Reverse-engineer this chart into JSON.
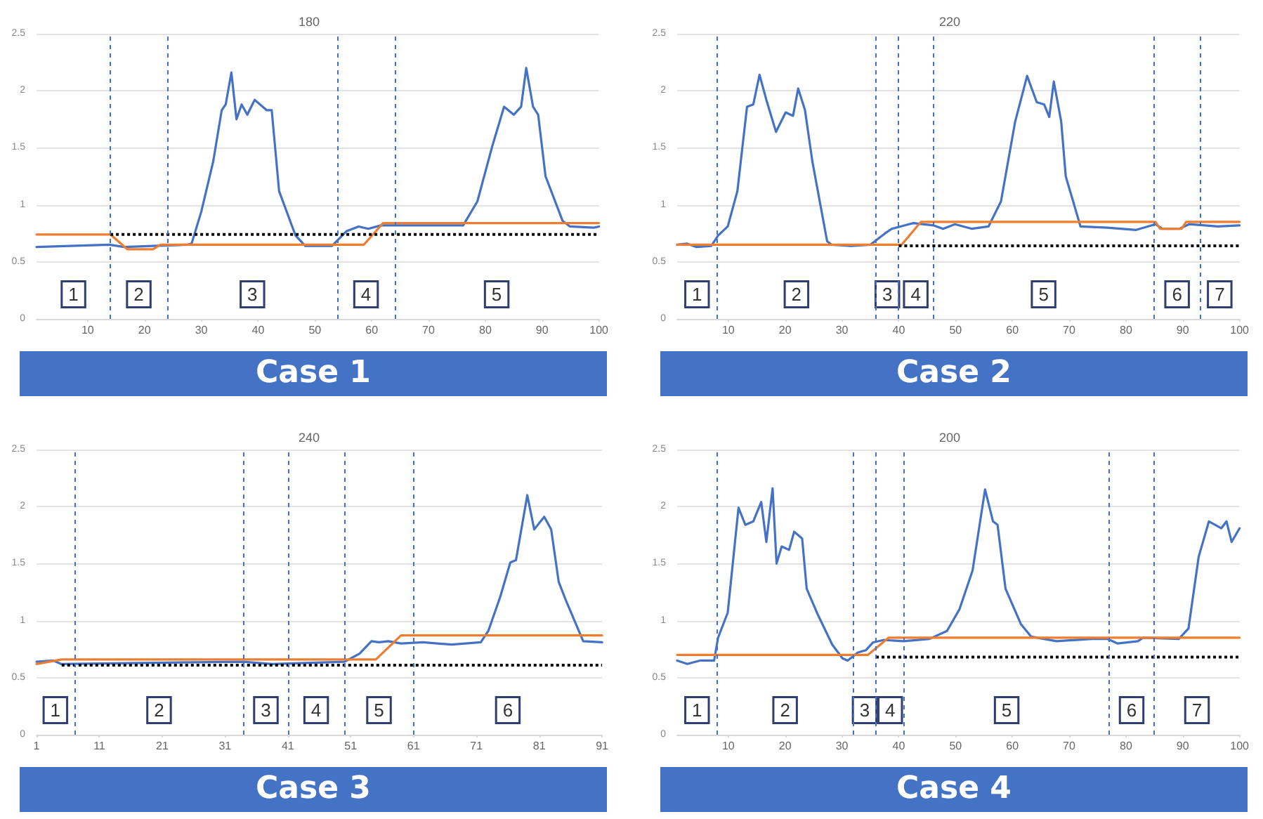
{
  "chart_data": [
    {
      "type": "line",
      "title": "180",
      "subtitle": "Case 1",
      "xlim": [
        1,
        100
      ],
      "xticks": [
        10,
        20,
        30,
        40,
        50,
        60,
        70,
        80,
        90,
        100
      ],
      "ylim": [
        0,
        2.5
      ],
      "yticks": [
        0,
        0.5,
        1,
        1.5,
        2,
        2.5
      ],
      "grid": "y",
      "marker": "none",
      "series": [
        {
          "color": "#4472c4",
          "x": [
            1,
            13.8,
            16.4,
            21.5,
            27.5,
            28.3,
            30,
            32.1,
            33.6,
            34.3,
            35.3,
            36.2,
            37.1,
            38.1,
            39.4,
            41.5,
            42.4,
            43.7,
            46.6,
            48.3,
            53,
            55.6,
            57.7,
            59.4,
            61.6,
            64.1,
            76.1,
            78.6,
            81.2,
            83.3,
            85,
            86.3,
            87.2,
            88.4,
            89.3,
            90.6,
            93.6,
            94.9,
            99.1,
            100
          ],
          "values": [
            0.63,
            0.65,
            0.63,
            0.64,
            0.65,
            0.66,
            0.94,
            1.38,
            1.83,
            1.88,
            2.16,
            1.75,
            1.88,
            1.79,
            1.92,
            1.83,
            1.83,
            1.12,
            0.73,
            0.64,
            0.64,
            0.77,
            0.81,
            0.79,
            0.82,
            0.82,
            0.82,
            1.03,
            1.51,
            1.86,
            1.79,
            1.86,
            2.2,
            1.86,
            1.79,
            1.25,
            0.86,
            0.81,
            0.8,
            0.81
          ]
        },
        {
          "color": "#ed7d31",
          "x": [
            1,
            14,
            17,
            21.5,
            22.8,
            58.6,
            62,
            100
          ],
          "values": [
            0.74,
            0.74,
            0.61,
            0.61,
            0.65,
            0.65,
            0.84,
            0.84
          ]
        },
        {
          "color": "#000000",
          "line_style": "dotted",
          "x": [
            14,
            100
          ],
          "values": [
            0.74,
            0.74
          ]
        }
      ],
      "ref_lines": [
        {
          "axis": "x",
          "value": 14,
          "color": "#4472c4",
          "line_style": "dashed"
        },
        {
          "axis": "x",
          "value": 24,
          "color": "#4472c4",
          "line_style": "dashed"
        },
        {
          "axis": "x",
          "value": 54,
          "color": "#4472c4",
          "line_style": "dashed"
        },
        {
          "axis": "x",
          "value": 64,
          "color": "#4472c4",
          "line_style": "dashed"
        }
      ],
      "annotations": [
        "1",
        "2",
        "3",
        "4",
        "5"
      ]
    },
    {
      "type": "line",
      "title": "220",
      "subtitle": "Case 2",
      "xlim": [
        1,
        100
      ],
      "xticks": [
        10,
        20,
        30,
        40,
        50,
        60,
        70,
        80,
        90,
        100
      ],
      "ylim": [
        0,
        2.5
      ],
      "yticks": [
        0,
        0.5,
        1,
        1.5,
        2,
        2.5
      ],
      "grid": "y",
      "marker": "none",
      "series": [
        {
          "color": "#4472c4",
          "x": [
            1,
            2.7,
            4.4,
            7,
            8.2,
            9.9,
            11.6,
            13.3,
            14.4,
            15.5,
            16.7,
            18.4,
            20.1,
            21.4,
            22.3,
            23.5,
            24.8,
            27.4,
            28.2,
            31.6,
            35,
            37.6,
            38.8,
            41.8,
            42.6,
            46.1,
            47.8,
            49.9,
            52.9,
            55.8,
            58,
            60.5,
            62.6,
            64.3,
            65.6,
            66.5,
            67.3,
            68.6,
            69.4,
            72,
            76.7,
            81.8,
            85.2,
            86.4,
            89.4,
            91.1,
            96.2,
            100
          ],
          "values": [
            0.65,
            0.66,
            0.63,
            0.64,
            0.73,
            0.81,
            1.12,
            1.86,
            1.88,
            2.14,
            1.92,
            1.64,
            1.81,
            1.78,
            2.02,
            1.83,
            1.38,
            0.68,
            0.65,
            0.64,
            0.65,
            0.75,
            0.79,
            0.83,
            0.84,
            0.82,
            0.79,
            0.83,
            0.79,
            0.81,
            1.03,
            1.73,
            2.13,
            1.9,
            1.88,
            1.77,
            2.08,
            1.73,
            1.25,
            0.81,
            0.8,
            0.78,
            0.83,
            0.79,
            0.79,
            0.83,
            0.81,
            0.82
          ]
        },
        {
          "color": "#ed7d31",
          "x": [
            1,
            40.5,
            43.9,
            85.2,
            86,
            89.8,
            90.6,
            100
          ],
          "values": [
            0.65,
            0.65,
            0.85,
            0.85,
            0.79,
            0.79,
            0.85,
            0.85
          ]
        },
        {
          "color": "#000000",
          "line_style": "dotted",
          "x": [
            40,
            100
          ],
          "values": [
            0.64,
            0.64
          ]
        }
      ],
      "ref_lines": [
        {
          "axis": "x",
          "value": 8,
          "color": "#4472c4",
          "line_style": "dashed"
        },
        {
          "axis": "x",
          "value": 36,
          "color": "#4472c4",
          "line_style": "dashed"
        },
        {
          "axis": "x",
          "value": 40,
          "color": "#4472c4",
          "line_style": "dashed"
        },
        {
          "axis": "x",
          "value": 46,
          "color": "#4472c4",
          "line_style": "dashed"
        },
        {
          "axis": "x",
          "value": 85,
          "color": "#4472c4",
          "line_style": "dashed"
        },
        {
          "axis": "x",
          "value": 93,
          "color": "#4472c4",
          "line_style": "dashed"
        }
      ],
      "annotations": [
        "1",
        "2",
        "3",
        "4",
        "5",
        "6",
        "7"
      ]
    },
    {
      "type": "line",
      "title": "240",
      "subtitle": "Case 3",
      "xlim": [
        1,
        91
      ],
      "xticks": [
        1,
        11,
        21,
        31,
        41,
        51,
        61,
        71,
        81,
        91
      ],
      "ylim": [
        0,
        2.5
      ],
      "yticks": [
        0,
        0.5,
        1,
        1.5,
        2,
        2.5
      ],
      "grid": "y",
      "marker": "none",
      "series": [
        {
          "color": "#4472c4",
          "x": [
            1,
            3.7,
            4.9,
            33.9,
            38.5,
            50,
            52.4,
            54.3,
            55.5,
            57,
            59,
            62.5,
            64.8,
            67.1,
            71.7,
            72.9,
            74.8,
            76.4,
            77.3,
            79.1,
            80.2,
            81.8,
            82.9,
            84.1,
            85.3,
            88,
            91
          ],
          "values": [
            0.64,
            0.65,
            0.62,
            0.64,
            0.62,
            0.64,
            0.71,
            0.82,
            0.81,
            0.82,
            0.8,
            0.81,
            0.8,
            0.79,
            0.81,
            0.91,
            1.21,
            1.51,
            1.53,
            2.1,
            1.8,
            1.91,
            1.8,
            1.34,
            1.17,
            0.82,
            0.81
          ]
        },
        {
          "color": "#ed7d31",
          "x": [
            1,
            5,
            55,
            59,
            91
          ],
          "values": [
            0.62,
            0.66,
            0.66,
            0.87,
            0.87
          ]
        },
        {
          "color": "#000000",
          "line_style": "dotted",
          "x": [
            5,
            91
          ],
          "values": [
            0.61,
            0.61
          ]
        }
      ],
      "ref_lines": [
        {
          "axis": "x",
          "value": 7,
          "color": "#4472c4",
          "line_style": "dashed"
        },
        {
          "axis": "x",
          "value": 34,
          "color": "#4472c4",
          "line_style": "dashed"
        },
        {
          "axis": "x",
          "value": 41,
          "color": "#4472c4",
          "line_style": "dashed"
        },
        {
          "axis": "x",
          "value": 50,
          "color": "#4472c4",
          "line_style": "dashed"
        },
        {
          "axis": "x",
          "value": 61,
          "color": "#4472c4",
          "line_style": "dashed"
        }
      ],
      "annotations": [
        "1",
        "2",
        "3",
        "4",
        "5",
        "6"
      ]
    },
    {
      "type": "line",
      "title": "200",
      "subtitle": "Case 4",
      "xlim": [
        1,
        100
      ],
      "xticks": [
        10,
        20,
        30,
        40,
        50,
        60,
        70,
        80,
        90,
        100
      ],
      "ylim": [
        0,
        2.5
      ],
      "yticks": [
        0,
        0.5,
        1,
        1.5,
        2,
        2.5
      ],
      "grid": "y",
      "marker": "none",
      "series": [
        {
          "color": "#4472c4",
          "x": [
            1,
            2.8,
            5,
            7.5,
            8.2,
            9.9,
            11.8,
            13,
            14.4,
            15.8,
            16.7,
            17.8,
            18.5,
            19.4,
            20.7,
            21.6,
            23,
            23.8,
            25.6,
            28.3,
            30.1,
            31,
            32.8,
            34.2,
            35.5,
            37.3,
            40.9,
            45.4,
            48.5,
            50.7,
            53,
            55.2,
            56.6,
            57.4,
            58.8,
            61.5,
            63.3,
            67.8,
            74,
            76.7,
            78.5,
            82.1,
            83,
            89.3,
            91,
            92.8,
            94.6,
            96.8,
            97.7,
            98.6,
            100
          ],
          "values": [
            0.65,
            0.62,
            0.65,
            0.65,
            0.85,
            1.07,
            1.99,
            1.84,
            1.87,
            2.04,
            1.69,
            2.16,
            1.5,
            1.65,
            1.62,
            1.78,
            1.72,
            1.28,
            1.07,
            0.79,
            0.67,
            0.65,
            0.72,
            0.74,
            0.81,
            0.83,
            0.82,
            0.84,
            0.91,
            1.1,
            1.44,
            2.15,
            1.87,
            1.84,
            1.28,
            0.97,
            0.86,
            0.82,
            0.84,
            0.84,
            0.8,
            0.82,
            0.85,
            0.84,
            0.93,
            1.56,
            1.87,
            1.81,
            1.87,
            1.69,
            1.81
          ]
        },
        {
          "color": "#ed7d31",
          "x": [
            1,
            34.6,
            38.2,
            100
          ],
          "values": [
            0.7,
            0.7,
            0.85,
            0.85
          ]
        },
        {
          "color": "#000000",
          "line_style": "dotted",
          "x": [
            36,
            100
          ],
          "values": [
            0.68,
            0.68
          ]
        }
      ],
      "ref_lines": [
        {
          "axis": "x",
          "value": 8,
          "color": "#4472c4",
          "line_style": "dashed"
        },
        {
          "axis": "x",
          "value": 32,
          "color": "#4472c4",
          "line_style": "dashed"
        },
        {
          "axis": "x",
          "value": 36,
          "color": "#4472c4",
          "line_style": "dashed"
        },
        {
          "axis": "x",
          "value": 41,
          "color": "#4472c4",
          "line_style": "dashed"
        },
        {
          "axis": "x",
          "value": 77,
          "color": "#4472c4",
          "line_style": "dashed"
        },
        {
          "axis": "x",
          "value": 85,
          "color": "#4472c4",
          "line_style": "dashed"
        }
      ],
      "annotations": [
        "1",
        "2",
        "3",
        "4",
        "5",
        "6",
        "7"
      ]
    }
  ]
}
